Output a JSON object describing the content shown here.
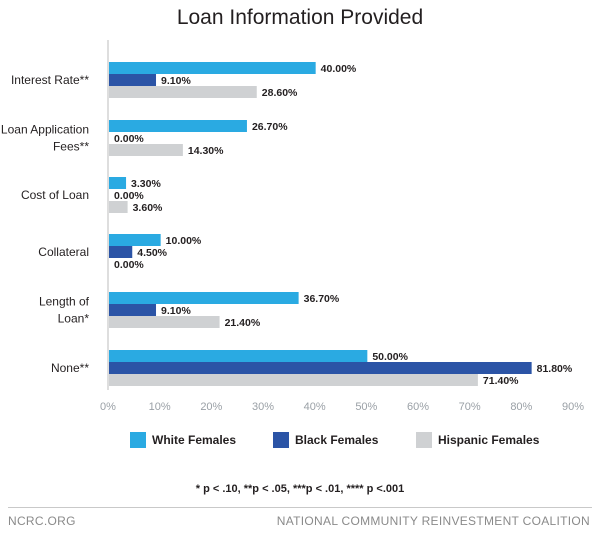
{
  "chart_data": {
    "type": "bar",
    "orientation": "horizontal",
    "title": "Loan Information Provided",
    "categories": [
      [
        "Interest Rate**"
      ],
      [
        "Loan Application",
        "Fees**"
      ],
      [
        "Cost of Loan"
      ],
      [
        "Collateral"
      ],
      [
        "Length of",
        "Loan*"
      ],
      [
        "None**"
      ]
    ],
    "series": [
      {
        "name": "White Females",
        "color": "#2aaae2",
        "values": [
          40.0,
          26.7,
          3.3,
          10.0,
          36.7,
          50.0
        ],
        "labels": [
          "40.00%",
          "26.70%",
          "3.30%",
          "10.00%",
          "36.70%",
          "50.00%"
        ]
      },
      {
        "name": "Black Females",
        "color": "#2b54a6",
        "values": [
          9.1,
          0.0,
          0.0,
          4.5,
          9.1,
          81.8
        ],
        "labels": [
          "9.10%",
          "0.00%",
          "0.00%",
          "4.50%",
          "9.10%",
          "81.80%"
        ]
      },
      {
        "name": "Hispanic Females",
        "color": "#cfd1d3",
        "values": [
          28.6,
          14.3,
          3.6,
          0.0,
          21.4,
          71.4
        ],
        "labels": [
          "28.60%",
          "14.30%",
          "3.60%",
          "0.00%",
          "21.40%",
          "71.40%"
        ]
      }
    ],
    "xlim": [
      0,
      90
    ],
    "xticks": [
      "0%",
      "10%",
      "20%",
      "30%",
      "40%",
      "50%",
      "60%",
      "70%",
      "80%",
      "90%"
    ],
    "grid": false,
    "legend_position": "bottom"
  },
  "footnote": "* p < .10, **p < .05, ***p < .01, **** p <.001",
  "footer": {
    "left": "NCRC.ORG",
    "right": "NATIONAL COMMUNITY REINVESTMENT COALITION"
  }
}
